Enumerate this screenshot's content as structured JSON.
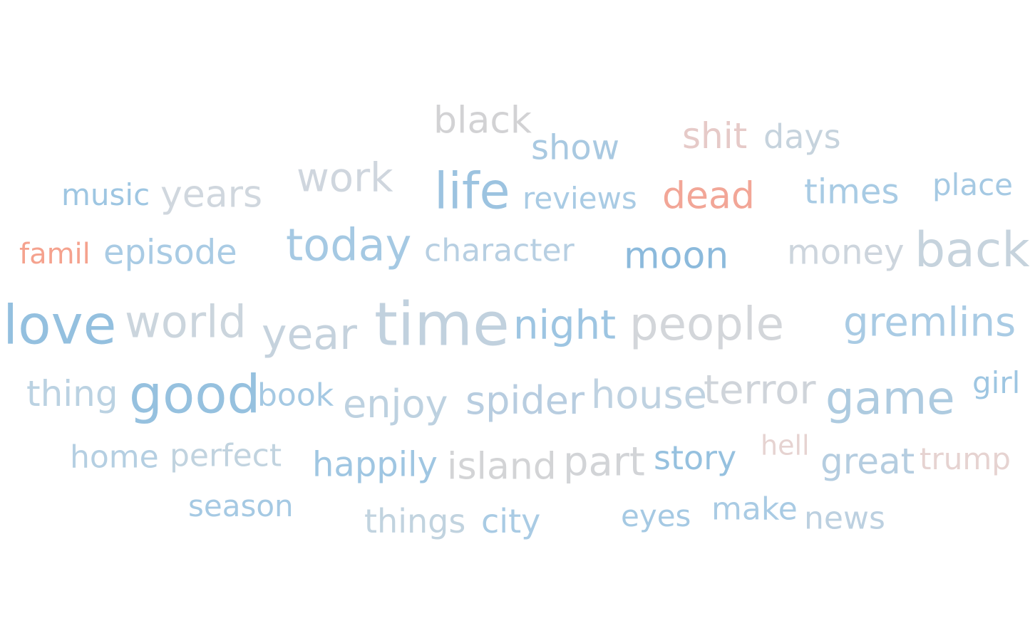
{
  "chart_data": {
    "type": "word_cloud",
    "words": [
      {
        "text": "black",
        "color": "#d2d2d4"
      },
      {
        "text": "show",
        "color": "#a9c9e1"
      },
      {
        "text": "shit",
        "color": "#e6cac8"
      },
      {
        "text": "days",
        "color": "#c6d3dd"
      },
      {
        "text": "music",
        "color": "#9ec6e2"
      },
      {
        "text": "years",
        "color": "#d0d7de"
      },
      {
        "text": "work",
        "color": "#cfd6de"
      },
      {
        "text": "life",
        "color": "#9cc3e0"
      },
      {
        "text": "reviews",
        "color": "#a9cbe4"
      },
      {
        "text": "dead",
        "color": "#f2a697"
      },
      {
        "text": "times",
        "color": "#a8cbe4"
      },
      {
        "text": "place",
        "color": "#a5c9e3"
      },
      {
        "text": "famil",
        "color": "#f5a28e"
      },
      {
        "text": "episode",
        "color": "#a9cbe4"
      },
      {
        "text": "today",
        "color": "#a5c9e3"
      },
      {
        "text": "character",
        "color": "#b7cfe2"
      },
      {
        "text": "moon",
        "color": "#8cbadc"
      },
      {
        "text": "money",
        "color": "#cdd5dd"
      },
      {
        "text": "back",
        "color": "#c6d3dd"
      },
      {
        "text": "love",
        "color": "#94c0df"
      },
      {
        "text": "world",
        "color": "#cbd5dd"
      },
      {
        "text": "year",
        "color": "#c5d2dd"
      },
      {
        "text": "time",
        "color": "#c1d1de"
      },
      {
        "text": "night",
        "color": "#9dc5e2"
      },
      {
        "text": "people",
        "color": "#d3d6da"
      },
      {
        "text": "gremlins",
        "color": "#a9cbe4"
      },
      {
        "text": "thing",
        "color": "#bbd2e2"
      },
      {
        "text": "good",
        "color": "#96c1df"
      },
      {
        "text": "book",
        "color": "#a5c9e3"
      },
      {
        "text": "enjoy",
        "color": "#bdd1e0"
      },
      {
        "text": "spider",
        "color": "#b8cde0"
      },
      {
        "text": "house",
        "color": "#bfd2e1"
      },
      {
        "text": "terror",
        "color": "#cfd4da"
      },
      {
        "text": "game",
        "color": "#aecbe0"
      },
      {
        "text": "girl",
        "color": "#9ec6e2"
      },
      {
        "text": "home",
        "color": "#b5cfe2"
      },
      {
        "text": "perfect",
        "color": "#c1d3df"
      },
      {
        "text": "happily",
        "color": "#9fc6e2"
      },
      {
        "text": "island",
        "color": "#d3d4d6"
      },
      {
        "text": "part",
        "color": "#d2d4d7"
      },
      {
        "text": "story",
        "color": "#96c1df"
      },
      {
        "text": "hell",
        "color": "#e6d3d1"
      },
      {
        "text": "great",
        "color": "#b5cde0"
      },
      {
        "text": "trump",
        "color": "#e6d3d1"
      },
      {
        "text": "season",
        "color": "#a5c9e3"
      },
      {
        "text": "things",
        "color": "#c1d3df"
      },
      {
        "text": "city",
        "color": "#a9cbe4"
      },
      {
        "text": "eyes",
        "color": "#a5c9e3"
      },
      {
        "text": "make",
        "color": "#a9cbe4"
      },
      {
        "text": "news",
        "color": "#bcd0e0"
      }
    ]
  }
}
